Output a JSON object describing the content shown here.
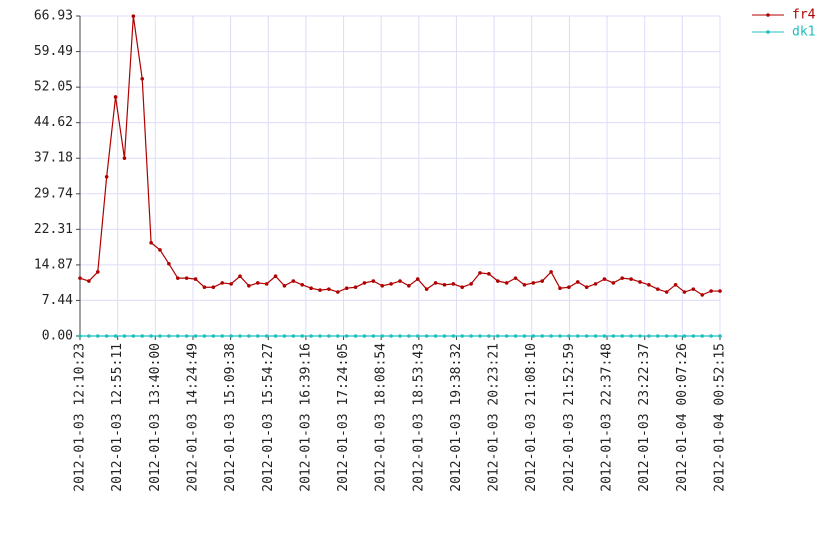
{
  "chart_data": {
    "type": "line",
    "series": [
      {
        "name": "fr4",
        "color": "#b00000",
        "values": [
          12.1,
          11.5,
          13.4,
          33.3,
          50.0,
          37.2,
          66.9,
          53.8,
          19.5,
          18.0,
          15.1,
          12.1,
          12.1,
          11.9,
          10.2,
          10.2,
          11.1,
          10.9,
          12.5,
          10.5,
          11.1,
          10.9,
          12.5,
          10.5,
          11.5,
          10.7,
          10.0,
          9.6,
          9.8,
          9.2,
          10.0,
          10.2,
          11.1,
          11.5,
          10.5,
          10.9,
          11.5,
          10.5,
          11.9,
          9.8,
          11.1,
          10.7,
          10.9,
          10.2,
          10.9,
          13.2,
          13.0,
          11.5,
          11.1,
          12.1,
          10.7,
          11.1,
          11.5,
          13.4,
          10.0,
          10.2,
          11.3,
          10.2,
          10.9,
          11.9,
          11.1,
          12.1,
          11.9,
          11.3,
          10.7,
          9.8,
          9.2,
          10.7,
          9.2,
          9.8,
          8.6,
          9.4,
          9.4
        ]
      },
      {
        "name": "dk1",
        "color": "#20c0c0",
        "values": [
          0,
          0,
          0,
          0,
          0,
          0,
          0,
          0,
          0,
          0,
          0,
          0,
          0,
          0,
          0,
          0,
          0,
          0,
          0,
          0,
          0,
          0,
          0,
          0,
          0,
          0,
          0,
          0,
          0,
          0,
          0,
          0,
          0,
          0,
          0,
          0,
          0,
          0,
          0,
          0,
          0,
          0,
          0,
          0,
          0,
          0,
          0,
          0,
          0,
          0,
          0,
          0,
          0,
          0,
          0,
          0,
          0,
          0,
          0,
          0,
          0,
          0,
          0,
          0,
          0,
          0,
          0,
          0,
          0,
          0,
          0,
          0,
          0
        ]
      }
    ],
    "xlim": [
      0,
      72
    ],
    "xticks": [
      {
        "value": 0,
        "label": "2012-01-03 12:10:23"
      },
      {
        "value": 4.24,
        "label": "2012-01-03 12:55:11"
      },
      {
        "value": 8.47,
        "label": "2012-01-03 13:40:00"
      },
      {
        "value": 12.71,
        "label": "2012-01-03 14:24:49"
      },
      {
        "value": 16.94,
        "label": "2012-01-03 15:09:38"
      },
      {
        "value": 21.18,
        "label": "2012-01-03 15:54:27"
      },
      {
        "value": 25.41,
        "label": "2012-01-03 16:39:16"
      },
      {
        "value": 29.65,
        "label": "2012-01-03 17:24:05"
      },
      {
        "value": 33.88,
        "label": "2012-01-03 18:08:54"
      },
      {
        "value": 38.12,
        "label": "2012-01-03 18:53:43"
      },
      {
        "value": 42.35,
        "label": "2012-01-03 19:38:32"
      },
      {
        "value": 46.59,
        "label": "2012-01-03 20:23:21"
      },
      {
        "value": 50.82,
        "label": "2012-01-03 21:08:10"
      },
      {
        "value": 55.06,
        "label": "2012-01-03 21:52:59"
      },
      {
        "value": 59.29,
        "label": "2012-01-03 22:37:48"
      },
      {
        "value": 63.53,
        "label": "2012-01-03 23:22:37"
      },
      {
        "value": 67.76,
        "label": "2012-01-04 00:07:26"
      },
      {
        "value": 72,
        "label": "2012-01-04 00:52:15"
      }
    ],
    "ylim": [
      0,
      66.93
    ],
    "yticks": [
      {
        "value": 0,
        "label": "0.00"
      },
      7.44,
      14.87,
      22.31,
      29.74,
      37.18,
      44.62,
      52.05,
      59.49,
      66.93
    ],
    "grid": true,
    "legend": "top-right"
  }
}
